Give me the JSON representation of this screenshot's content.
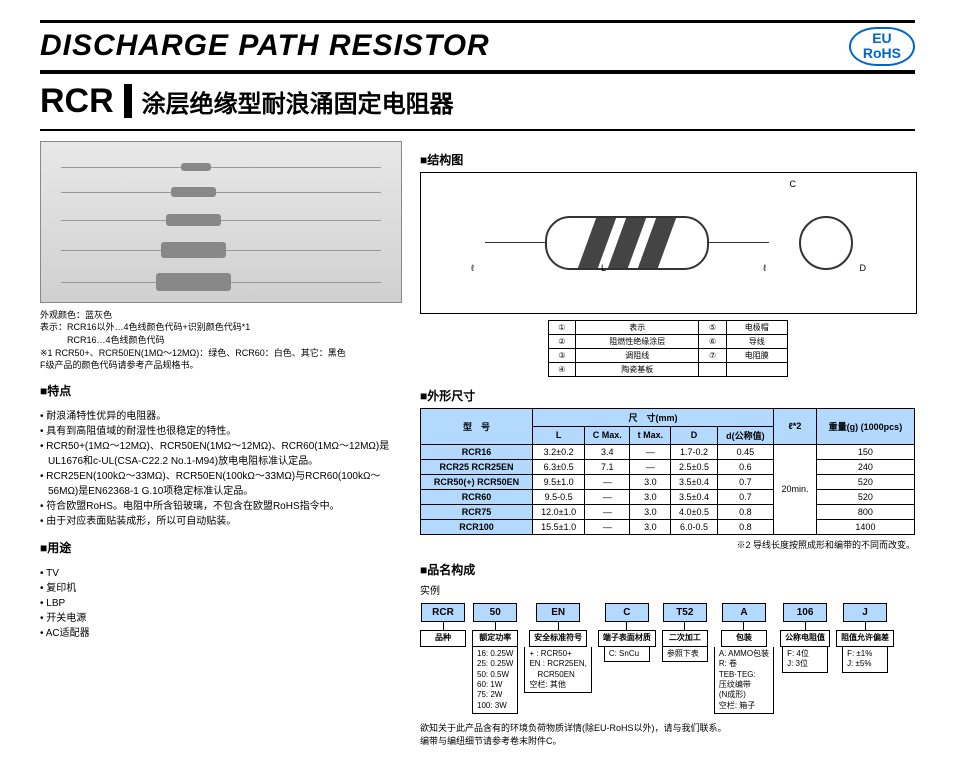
{
  "header": {
    "title": "DISCHARGE PATH RESISTOR",
    "badge1": "EU",
    "badge2": "RoHS"
  },
  "sub": {
    "code": "RCR",
    "cn": "涂层绝缘型耐浪涌固定电阻器"
  },
  "colors": {
    "accent": "#0066cc",
    "tblhead": "#b3d9ff"
  },
  "leftnote": {
    "l1": "外观颜色：蓝灰色",
    "l2": "表示：RCR16以外…4色线颜色代码+识别颜色代码*1",
    "l3": "　　　RCR16…4色线颜色代码",
    "l4": "※1 RCR50+、RCR50EN(1MΩ～12MΩ)：绿色、RCR60：白色、其它：黑色",
    "l5": "F级产品的颜色代码请参考产品规格书。"
  },
  "sec": {
    "feat": "■特点",
    "use": "■用途",
    "struct": "■结构图",
    "dim": "■外形尺寸",
    "pn": "■品名构成",
    "ex": "实例"
  },
  "feat": [
    "• 耐浪涌特性优异的电阻器。",
    "• 具有到高阻值域的耐湿性也很稳定的特性。",
    "• RCR50+(1MΩ～12MΩ)、RCR50EN(1MΩ～12MΩ)、RCR60(1MΩ～12MΩ)是UL1676和c-UL(CSA-C22.2 No.1-M94)放电电阻标准认定品。",
    "• RCR25EN(100kΩ～33MΩ)、RCR50EN(100kΩ～33MΩ)与RCR60(100kΩ～56MΩ)是EN62368-1 G.10项稳定标准认定品。",
    "• 符合欧盟RoHS。电阻中所含铅玻璃，不包含在欧盟RoHS指令中。",
    "• 由于对应表面贴装成形，所以可自动贴装。"
  ],
  "use": [
    "• TV",
    "• 复印机",
    "• LBP",
    "• 开关电源",
    "• AC适配器"
  ],
  "structLabels": [
    [
      "①",
      "表示",
      "⑤",
      "电极帽"
    ],
    [
      "②",
      "阻燃性绝缘涂层",
      "⑥",
      "导线"
    ],
    [
      "③",
      "调阻线",
      "⑦",
      "电阻膜"
    ],
    [
      "④",
      "陶瓷基板",
      "",
      ""
    ]
  ],
  "dimhead": {
    "model": "型　号",
    "span": "尺　寸(mm)",
    "L": "L",
    "C": "C Max.",
    "t": "t Max.",
    "D": "D",
    "d": "d(公称值)",
    "l": "ℓ*2",
    "w": "重量(g) (1000pcs)"
  },
  "dims": [
    {
      "m": "RCR16",
      "L": "3.2±0.2",
      "C": "3.4",
      "t": "—",
      "D": "1.7-0.2",
      "d": "0.45",
      "l": "",
      "w": "150"
    },
    {
      "m": "RCR25 RCR25EN",
      "L": "6.3±0.5",
      "C": "7.1",
      "t": "—",
      "D": "2.5±0.5",
      "d": "0.6",
      "l": "",
      "w": "240"
    },
    {
      "m": "RCR50(+) RCR50EN",
      "L": "9.5±1.0",
      "C": "—",
      "t": "3.0",
      "D": "3.5±0.4",
      "d": "0.7",
      "l": "20min.",
      "w": "520"
    },
    {
      "m": "RCR60",
      "L": "9.5-0.5",
      "C": "—",
      "t": "3.0",
      "D": "3.5±0.4",
      "d": "0.7",
      "l": "",
      "w": "520"
    },
    {
      "m": "RCR75",
      "L": "12.0±1.0",
      "C": "—",
      "t": "3.0",
      "D": "4.0±0.5",
      "d": "0.8",
      "l": "",
      "w": "800"
    },
    {
      "m": "RCR100",
      "L": "15.5±1.0",
      "C": "—",
      "t": "3.0",
      "D": "6.0-0.5",
      "d": "0.8",
      "l": "",
      "w": "1400"
    }
  ],
  "dimnote": "※2 导线长度按照成形和编带的不同而改变。",
  "pn": {
    "boxes": [
      "RCR",
      "50",
      "EN",
      "C",
      "T52",
      "A",
      "106",
      "J"
    ],
    "labels": [
      "品种",
      "额定功率",
      "安全标准符号",
      "端子表面材质",
      "二次加工",
      "包装",
      "公称电阻值",
      "阻值允许偏差"
    ],
    "details": [
      "",
      "16: 0.25W\n25: 0.25W\n50: 0.5W\n60: 1W\n75: 2W\n100: 3W",
      "+ : RCR50+\nEN : RCR25EN,\n　RCR50EN\n空栏: 其他",
      "C: SnCu",
      "参照下表",
      "A: AMMO包装\nR: 卷\nTEB·TEG:\n压纹编带\n(N成形)\n空栏: 箱子",
      "F: 4位\nJ: 3位",
      "F: ±1%\nJ: ±5%"
    ]
  },
  "foot": {
    "l1": "欲知关于此产品含有的环境负荷物质详情(除EU-RoHS以外)，请与我们联系。",
    "l2": "编带与编纽细节请参考卷末附件C。"
  }
}
